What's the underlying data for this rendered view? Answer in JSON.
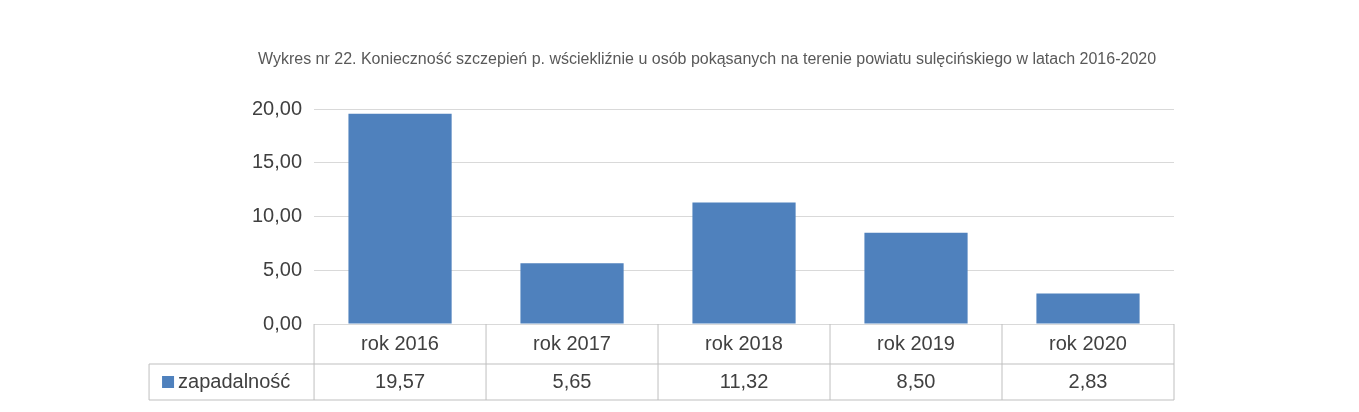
{
  "chart_data": {
    "type": "bar",
    "title": "Wykres nr 22. Konieczność szczepień p. wściekliźnie u osób pokąsanych na terenie powiatu sulęcińskiego w latach 2016-2020",
    "categories": [
      "rok 2016",
      "rok 2017",
      "rok 2018",
      "rok 2019",
      "rok 2020"
    ],
    "series": [
      {
        "name": "zapadalność",
        "color": "#4f81bd",
        "values": [
          19.57,
          5.65,
          11.32,
          8.5,
          2.83
        ],
        "value_labels": [
          "19,57",
          "5,65",
          "11,32",
          "8,50",
          "2,83"
        ]
      }
    ],
    "ylim": [
      0,
      20
    ],
    "yticks": [
      {
        "value": 0,
        "label": "0,00"
      },
      {
        "value": 5,
        "label": "5,00"
      },
      {
        "value": 10,
        "label": "10,00"
      },
      {
        "value": 15,
        "label": "15,00"
      },
      {
        "value": 20,
        "label": "20,00"
      }
    ],
    "grid": "y",
    "legend": "bottom"
  }
}
